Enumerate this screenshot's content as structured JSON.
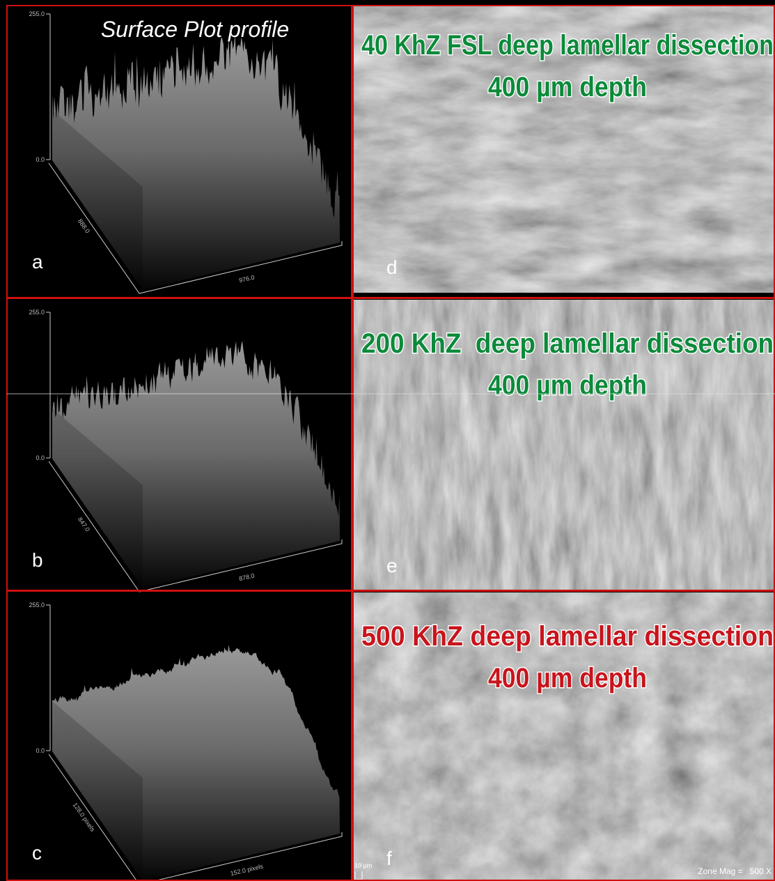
{
  "plots": [
    {
      "label": "a",
      "title": "Surface Plot profile",
      "y_top": "255.0",
      "y_bottom": "0.0",
      "depth_label": "888.0",
      "width_label": "976.0"
    },
    {
      "label": "b",
      "y_top": "255.0",
      "y_bottom": "0.0",
      "depth_label": "847.0",
      "width_label": "878.0"
    },
    {
      "label": "c",
      "y_top": "255.0",
      "y_bottom": "0.0",
      "depth_label": "128.0 pixels",
      "width_label": "152.0 pixels"
    }
  ],
  "sem": [
    {
      "label": "d",
      "title": "40 KhZ FSL deep lamellar dissection",
      "subtitle": "400 µm depth"
    },
    {
      "label": "e",
      "title": "200 KhZ  deep lamellar dissection",
      "subtitle": "400 µm depth"
    },
    {
      "label": "f",
      "title": "500 KhZ deep lamellar dissection",
      "subtitle": "400 µm depth"
    }
  ],
  "scale_bar": "10 µm",
  "zone_mag": "Zone Mag =   500 X"
}
